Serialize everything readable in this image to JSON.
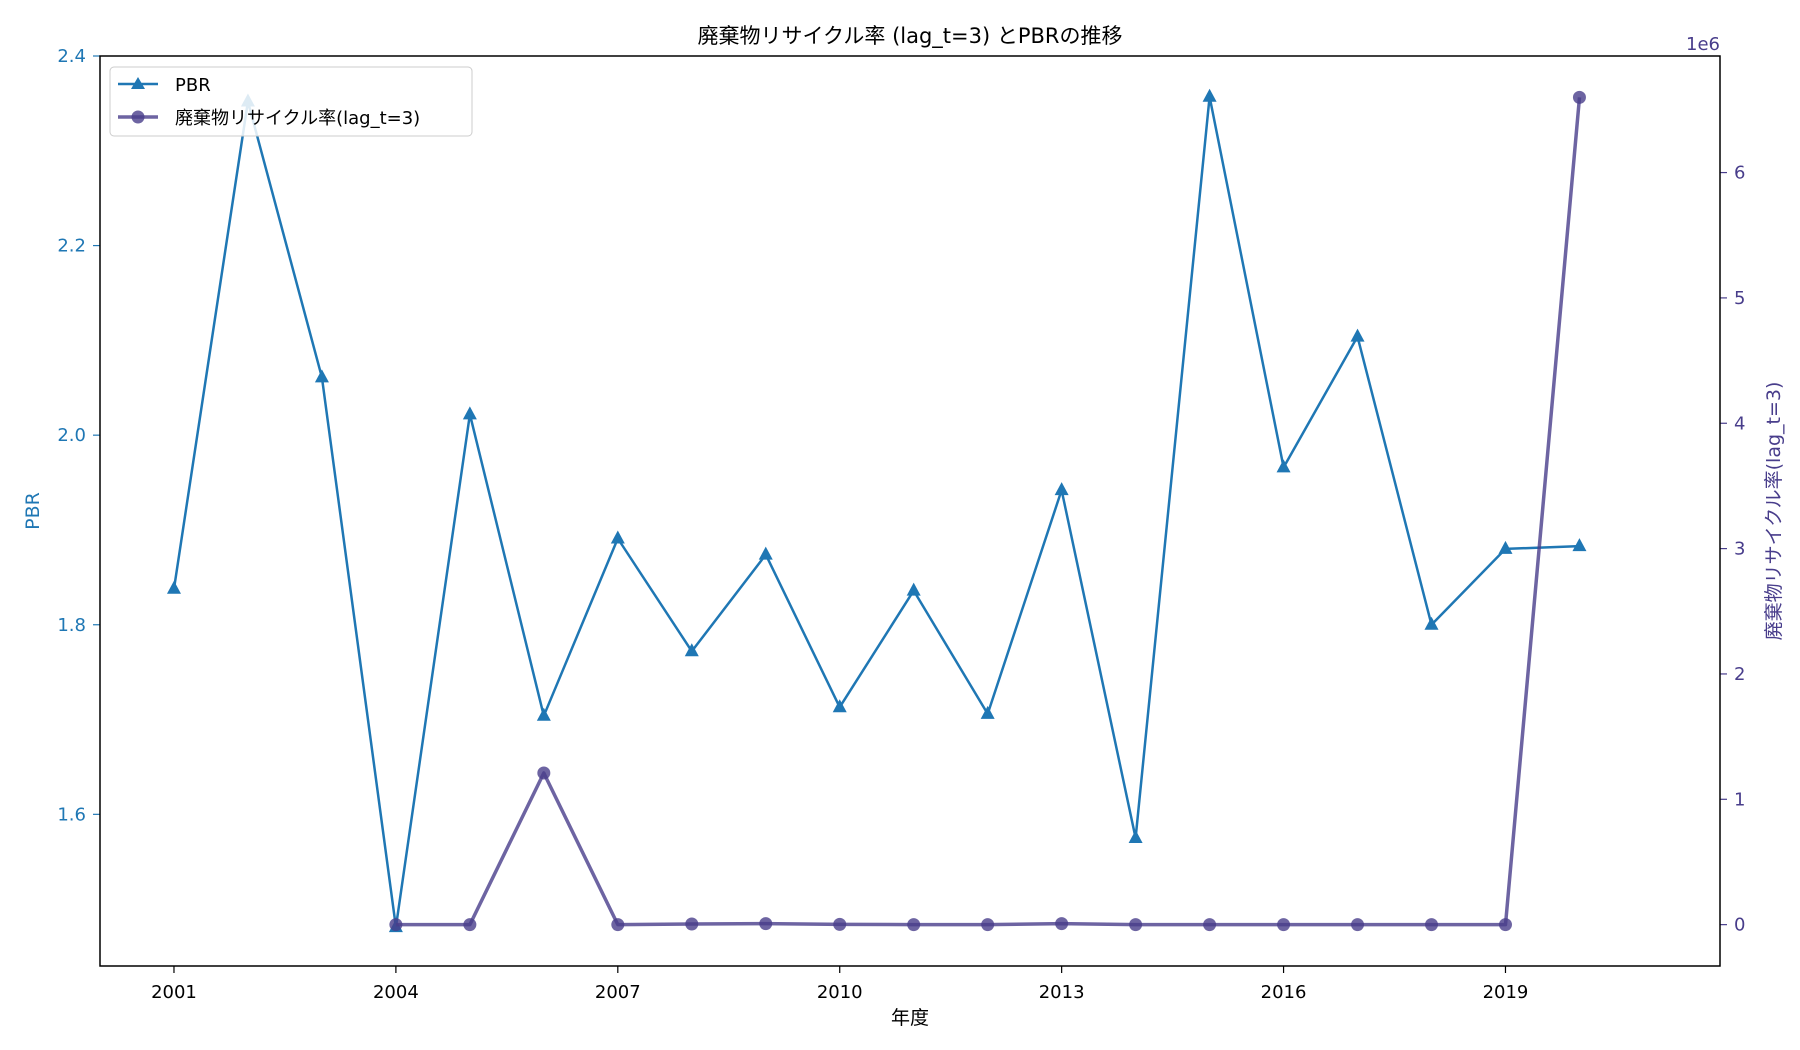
{
  "chart_data": {
    "type": "line",
    "title": "廃棄物リサイクル率 (lag_t=3) とPBRの推移",
    "xlabel": "年度",
    "ylabel_left": "PBR",
    "ylabel_right": "廃棄物リサイクル率(lag_t=3)",
    "right_axis_multiplier": "1e6",
    "xlim": [
      2000,
      2021.9
    ],
    "ylim_left": [
      1.44,
      2.4
    ],
    "ylim_right": [
      -330000,
      6930000
    ],
    "x_ticks": [
      "2001",
      "2004",
      "2007",
      "2010",
      "2013",
      "2016",
      "2019"
    ],
    "y_ticks_left": [
      "1.6",
      "1.8",
      "2.0",
      "2.2",
      "2.4"
    ],
    "y_ticks_right": [
      "0",
      "1",
      "2",
      "3",
      "4",
      "5",
      "6"
    ],
    "grid": false,
    "legend_position": "top-left",
    "series": [
      {
        "name": "PBR",
        "axis": "left",
        "marker": "triangle",
        "color": "#1f77b4",
        "x": [
          2001,
          2002,
          2003,
          2004,
          2005,
          2006,
          2007,
          2008,
          2009,
          2010,
          2011,
          2012,
          2013,
          2014,
          2015,
          2016,
          2017,
          2018,
          2019,
          2020
        ],
        "values": [
          1.838,
          2.352,
          2.061,
          1.481,
          2.022,
          1.704,
          1.891,
          1.772,
          1.874,
          1.713,
          1.836,
          1.706,
          1.942,
          1.575,
          2.357,
          1.966,
          2.104,
          1.8,
          1.88,
          1.883
        ]
      },
      {
        "name": "廃棄物リサイクル率(lag_t=3)",
        "axis": "right",
        "marker": "circle",
        "color": "#483d8b",
        "x": [
          2004,
          2005,
          2006,
          2007,
          2008,
          2009,
          2010,
          2011,
          2012,
          2013,
          2014,
          2015,
          2016,
          2017,
          2018,
          2019,
          2020
        ],
        "values": [
          0,
          0,
          1210000,
          0,
          5000,
          8000,
          2000,
          0,
          0,
          8000,
          0,
          0,
          0,
          0,
          0,
          0,
          6600000
        ]
      }
    ]
  }
}
